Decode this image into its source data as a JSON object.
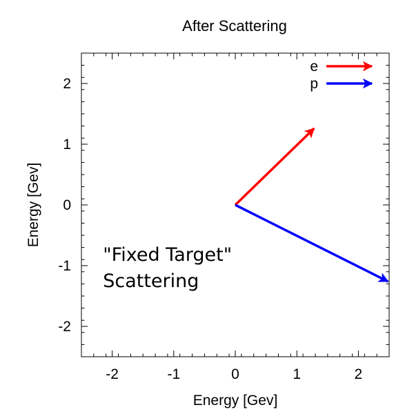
{
  "chart_data": {
    "type": "vector",
    "title": "After Scattering",
    "xlabel": "Energy [Gev]",
    "ylabel": "Energy [Gev]",
    "xlim": [
      -2.5,
      2.5
    ],
    "ylim": [
      -2.5,
      2.5
    ],
    "xticks": [
      {
        "value": -2,
        "label": "-2"
      },
      {
        "value": -1,
        "label": "-1"
      },
      {
        "value": 0,
        "label": "0"
      },
      {
        "value": 1,
        "label": "1"
      },
      {
        "value": 2,
        "label": "2"
      }
    ],
    "yticks": [
      {
        "value": -2,
        "label": "-2"
      },
      {
        "value": -1,
        "label": "-1"
      },
      {
        "value": 0,
        "label": "0"
      },
      {
        "value": 1,
        "label": "1"
      },
      {
        "value": 2,
        "label": "2"
      }
    ],
    "minor_ticks_per_major": 5,
    "grid": false,
    "legend_position": "top-right",
    "series": [
      {
        "name": "e",
        "color": "#ff0000",
        "x0": 0,
        "y0": 0,
        "x1": 1.28,
        "y1": 1.26
      },
      {
        "name": "p",
        "color": "#0000ff",
        "x0": 0,
        "y0": 0,
        "x1": 2.48,
        "y1": -1.26
      }
    ],
    "annotation": {
      "lines": [
        "\"Fixed Target\"",
        "Scattering"
      ],
      "x": -2.15,
      "y": -0.92
    }
  }
}
